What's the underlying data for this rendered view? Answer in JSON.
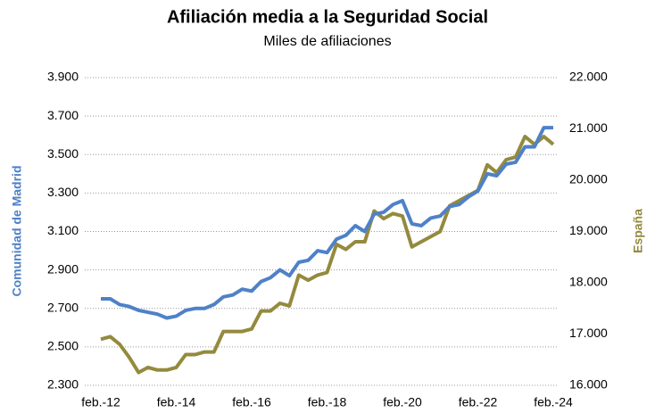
{
  "chart_data": {
    "type": "line",
    "title": "Afiliación media a la Seguridad Social",
    "subtitle": "Miles de afiliaciones",
    "ylabel": "Comunidad de Madrid",
    "y2label": "España",
    "categories": [
      "feb.-12",
      null,
      null,
      null,
      null,
      null,
      null,
      null,
      "feb.-14",
      null,
      null,
      null,
      null,
      null,
      null,
      null,
      "feb.-16",
      null,
      null,
      null,
      null,
      null,
      null,
      null,
      "feb.-18",
      null,
      null,
      null,
      null,
      null,
      null,
      null,
      "feb.-20",
      null,
      null,
      null,
      null,
      null,
      null,
      null,
      "feb.-22",
      null,
      null,
      null,
      null,
      null,
      null,
      null,
      "feb.-24"
    ],
    "series": [
      {
        "name": "Comunidad de Madrid",
        "color": "#4f81c7",
        "axis": "y",
        "values": [
          2750,
          2750,
          2720,
          2710,
          2690,
          2680,
          2670,
          2650,
          2660,
          2690,
          2700,
          2700,
          2720,
          2760,
          2770,
          2800,
          2790,
          2840,
          2860,
          2900,
          2870,
          2940,
          2950,
          3000,
          2990,
          3060,
          3080,
          3130,
          3100,
          3190,
          3200,
          3240,
          3260,
          3140,
          3130,
          3170,
          3180,
          3230,
          3240,
          3280,
          3310,
          3400,
          3390,
          3450,
          3460,
          3540,
          3540,
          3640,
          3640
        ]
      },
      {
        "name": "España",
        "color": "#948a3e",
        "axis": "y2",
        "values": [
          16900,
          16950,
          16800,
          16550,
          16250,
          16350,
          16300,
          16300,
          16350,
          16600,
          16600,
          16650,
          16650,
          17050,
          17050,
          17050,
          17100,
          17450,
          17450,
          17600,
          17550,
          18150,
          18050,
          18150,
          18200,
          18750,
          18650,
          18800,
          18800,
          19400,
          19250,
          19350,
          19300,
          18700,
          18800,
          18900,
          19000,
          19500,
          19600,
          19700,
          19800,
          20300,
          20150,
          20400,
          20450,
          20850,
          20700,
          20850,
          20700
        ]
      }
    ],
    "ylim": [
      2300,
      3900
    ],
    "yticks": [
      {
        "value": 2300,
        "label": "2.300"
      },
      {
        "value": 2500,
        "label": "2.500"
      },
      {
        "value": 2700,
        "label": "2.700"
      },
      {
        "value": 2900,
        "label": "2.900"
      },
      {
        "value": 3100,
        "label": "3.100"
      },
      {
        "value": 3300,
        "label": "3.300"
      },
      {
        "value": 3500,
        "label": "3.500"
      },
      {
        "value": 3700,
        "label": "3.700"
      },
      {
        "value": 3900,
        "label": "3.900"
      }
    ],
    "y2lim": [
      16000,
      22000
    ],
    "y2ticks": [
      {
        "value": 16000,
        "label": "16.000"
      },
      {
        "value": 17000,
        "label": "17.000"
      },
      {
        "value": 18000,
        "label": "18.000"
      },
      {
        "value": 19000,
        "label": "19.000"
      },
      {
        "value": 20000,
        "label": "20.000"
      },
      {
        "value": 21000,
        "label": "21.000"
      },
      {
        "value": 22000,
        "label": "22.000"
      }
    ],
    "grid": true
  }
}
